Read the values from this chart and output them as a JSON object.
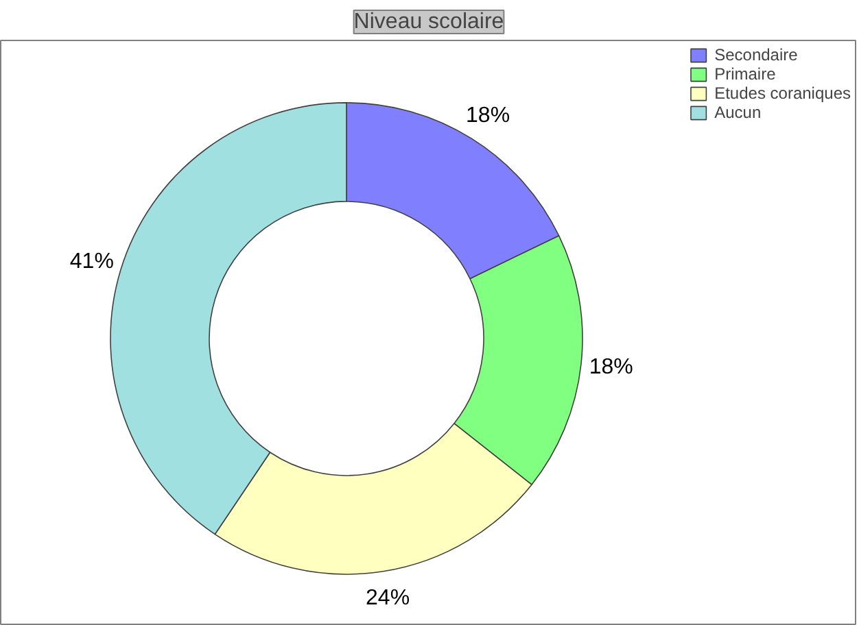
{
  "chart_data": {
    "type": "donut",
    "title": "Niveau scolaire",
    "categories": [
      "Secondaire",
      "Primaire",
      "Etudes coraniques",
      "Aucun"
    ],
    "values": [
      18,
      18,
      24,
      41
    ],
    "value_labels": [
      "18%",
      "18%",
      "24%",
      "41%"
    ],
    "colors": [
      "#8080ff",
      "#80ff80",
      "#ffffc0",
      "#a0e0e0"
    ],
    "legend": "top right"
  }
}
